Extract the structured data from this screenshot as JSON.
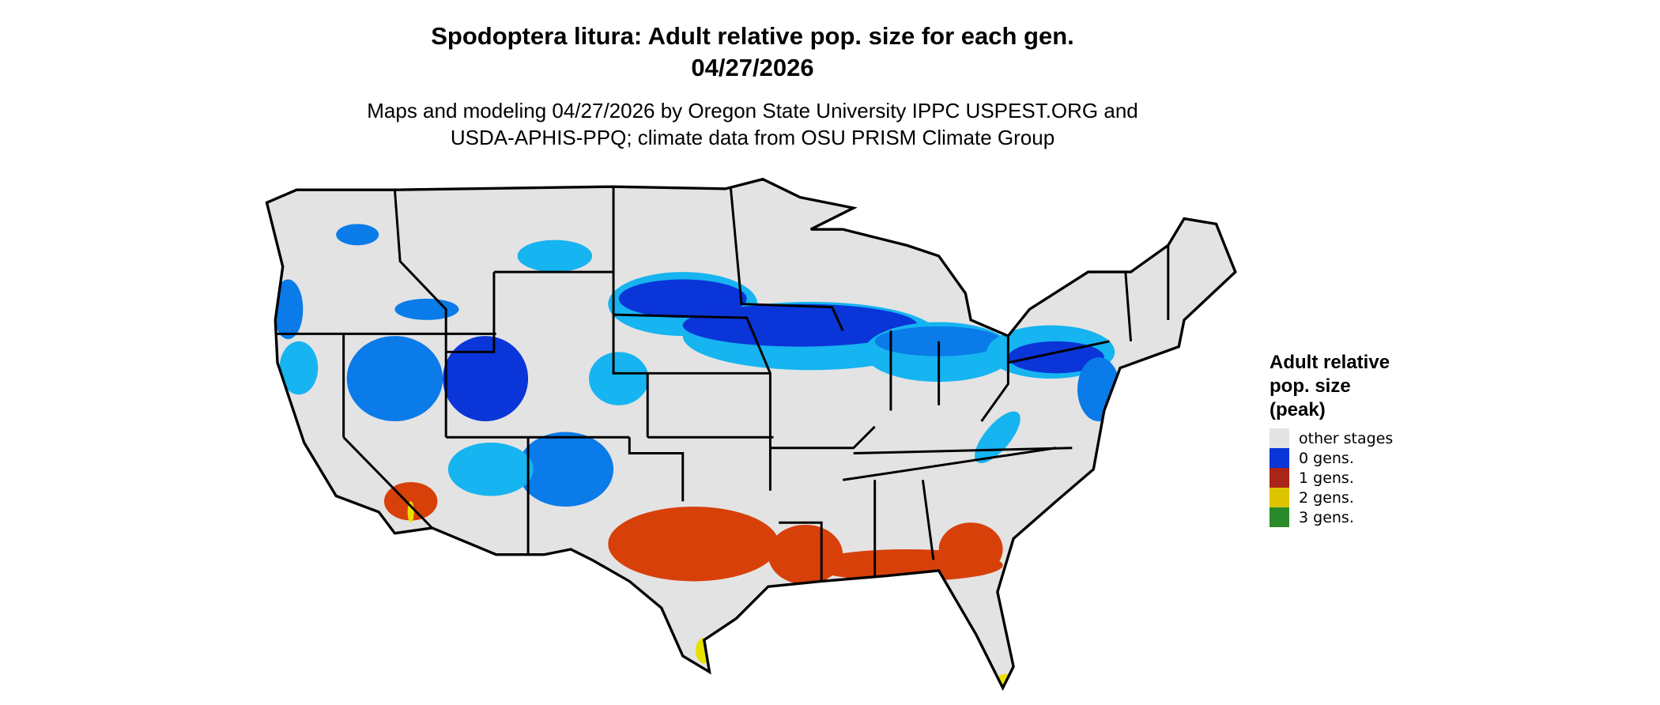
{
  "title": {
    "line1": "Spodoptera litura: Adult relative pop. size for each gen.",
    "line2": "04/27/2026"
  },
  "subtitle": {
    "line1": "Maps and modeling 04/27/2026 by Oregon State University IPPC USPEST.ORG and",
    "line2": "USDA-APHIS-PPQ; climate data from OSU PRISM Climate Group"
  },
  "legend": {
    "title_lines": [
      "Adult relative",
      "pop. size",
      "(peak)"
    ],
    "items": [
      {
        "label": "other stages",
        "color": "#e3e3e3"
      },
      {
        "label": "0 gens.",
        "color": "#0a35d8"
      },
      {
        "label": "1 gens.",
        "color": "#a92516"
      },
      {
        "label": "2 gens.",
        "color": "#dcc400"
      },
      {
        "label": "3 gens.",
        "color": "#2a8a2a"
      }
    ]
  },
  "colors": {
    "land": "#e3e3e3",
    "border": "#000000",
    "light_blue": "#16b4f0",
    "mid_blue": "#0a7be8",
    "dark_blue": "#0a35d8",
    "orange_red": "#d8400a",
    "yellow": "#e8e000"
  }
}
